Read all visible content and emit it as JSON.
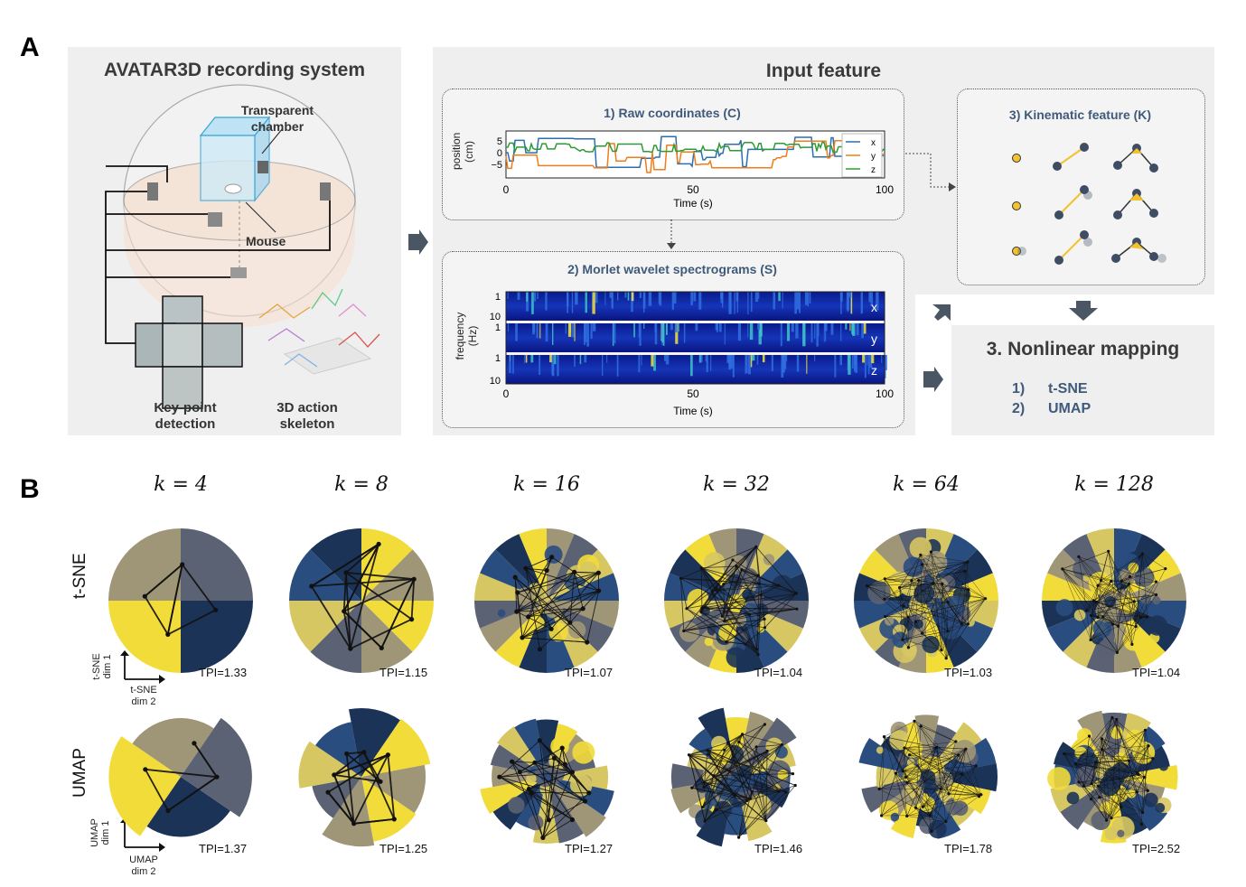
{
  "panelA": {
    "letter": "A",
    "recording": {
      "title": "AVATAR3D recording system",
      "chamber_label": "Transparent\nchamber",
      "mouse_label": "Mouse",
      "keypoint_label": "Key-point\ndetection",
      "skeleton_label": "3D action\nskeleton"
    },
    "input": {
      "title": "Input feature",
      "raw": {
        "title": "1) Raw coordinates (C)",
        "ylabel": "position\n(cm)",
        "xlabel": "Time (s)",
        "yticks": [
          "5",
          "0",
          "−5"
        ],
        "xticks": [
          "0",
          "50",
          "100"
        ],
        "legend": [
          "x",
          "y",
          "z"
        ]
      },
      "morlet": {
        "title": "2) Morlet wavelet spectrograms (S)",
        "ylabel": "frequency\n(Hz)",
        "xlabel": "Time (s)",
        "yticks": [
          "1",
          "10"
        ],
        "xticks": [
          "0",
          "50",
          "100"
        ],
        "channels": [
          "x",
          "y",
          "z"
        ]
      },
      "kinematic": {
        "title": "3) Kinematic feature (K)"
      }
    },
    "mapping": {
      "title": "3. Nonlinear mapping",
      "items": [
        {
          "num": "1)",
          "label": "t-SNE"
        },
        {
          "num": "2)",
          "label": "UMAP"
        }
      ]
    }
  },
  "panelB": {
    "letter": "B",
    "k_labels": [
      "k = 4",
      "k = 8",
      "k = 16",
      "k = 32",
      "k = 64",
      "k = 128"
    ],
    "rows": [
      {
        "label": "t-SNE",
        "axis_dim1": "t-SNE\ndim 1",
        "axis_dim2": "t-SNE\ndim 2",
        "tpi": [
          "TPI=1.33",
          "TPI=1.15",
          "TPI=1.07",
          "TPI=1.04",
          "TPI=1.03",
          "TPI=1.04"
        ]
      },
      {
        "label": "UMAP",
        "axis_dim1": "UMAP\ndim 1",
        "axis_dim2": "UMAP\ndim 2",
        "tpi": [
          "TPI=1.37",
          "TPI=1.25",
          "TPI=1.27",
          "TPI=1.46",
          "TPI=1.78",
          "TPI=2.52"
        ]
      }
    ],
    "colors": {
      "navy": "#1c3358",
      "yellow": "#f2dc3a",
      "khaki": "#9e9677",
      "slate": "#5b6273",
      "mustard": "#d7c762",
      "blue": "#2a4d80"
    }
  }
}
